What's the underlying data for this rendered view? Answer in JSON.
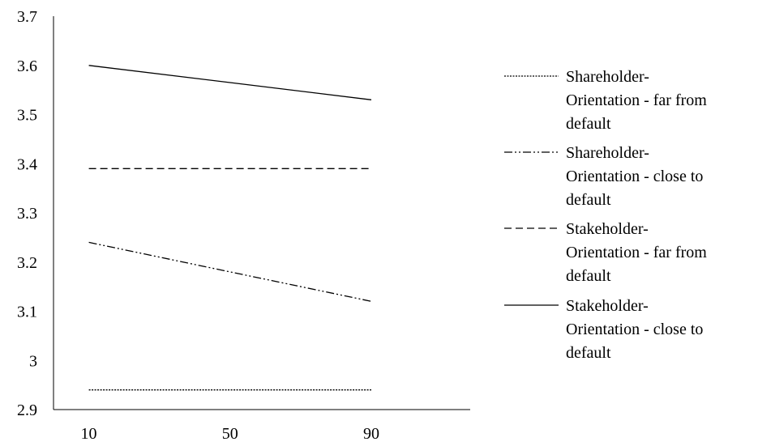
{
  "chart_data": {
    "type": "line",
    "title": "",
    "xlabel": "",
    "ylabel": "",
    "x": [
      10,
      50,
      90
    ],
    "x_tick_labels": [
      "10",
      "50",
      "90"
    ],
    "ylim": [
      2.9,
      3.7
    ],
    "y_tick_labels": [
      "2.9",
      "3",
      "3.1",
      "3.2",
      "3.3",
      "3.4",
      "3.5",
      "3.6",
      "3.7"
    ],
    "grid": false,
    "legend_position": "right",
    "series": [
      {
        "name": "Shareholder-Orientation - far from default",
        "legend_lines": [
          "Shareholder-",
          "Orientation - far from",
          "default"
        ],
        "dash": "dotted",
        "values": [
          2.94,
          2.94,
          2.94
        ]
      },
      {
        "name": "Shareholder-Orientation - close to default",
        "legend_lines": [
          "Shareholder-",
          "Orientation - close to",
          "default"
        ],
        "dash": "dash-dot-dot",
        "values": [
          3.24,
          3.18,
          3.12
        ]
      },
      {
        "name": "Stakeholder-Orientation - far from default",
        "legend_lines": [
          "Stakeholder-",
          "Orientation - far from",
          "default"
        ],
        "dash": "dashed",
        "values": [
          3.39,
          3.39,
          3.39
        ]
      },
      {
        "name": "Stakeholder-Orientation - close to default",
        "legend_lines": [
          "Stakeholder-",
          "Orientation - close to",
          "default"
        ],
        "dash": "solid",
        "values": [
          3.6,
          3.565,
          3.53
        ]
      }
    ]
  }
}
